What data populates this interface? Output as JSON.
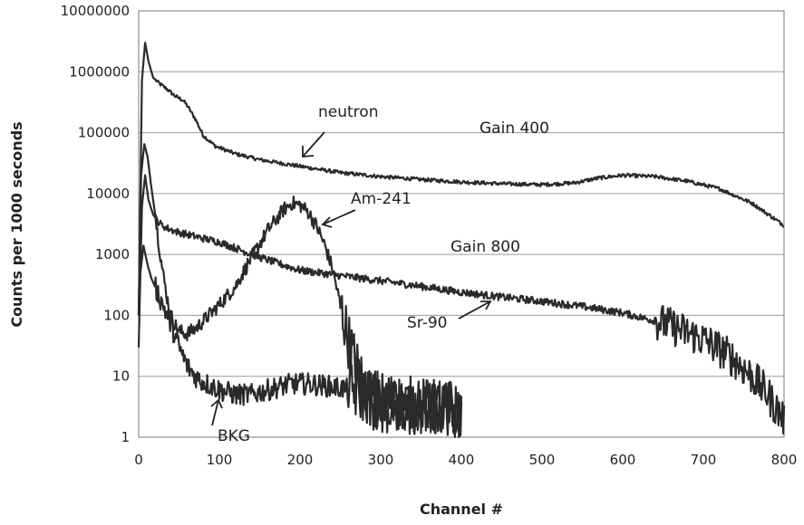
{
  "chart_data": {
    "type": "line",
    "xlabel": "Channel #",
    "ylabel": "Counts per 1000 seconds",
    "xlim": [
      0,
      800
    ],
    "ylim": [
      1,
      10000000
    ],
    "yscale": "log",
    "grid": true,
    "x_ticks": [
      0,
      100,
      200,
      300,
      400,
      500,
      600,
      700,
      800
    ],
    "y_ticks": [
      "1",
      "10",
      "100",
      "1000",
      "10000",
      "100000",
      "1000000",
      "10000000"
    ],
    "y_tick_values": [
      1,
      10,
      100,
      1000,
      10000,
      100000,
      1000000,
      10000000
    ],
    "series": [
      {
        "key": "neutron",
        "x": [
          0,
          4,
          8,
          12,
          18,
          25,
          35,
          45,
          55,
          60,
          70,
          80,
          95,
          120,
          150,
          200,
          250,
          300,
          350,
          400,
          450,
          500,
          540,
          570,
          600,
          640,
          680,
          720,
          760,
          800
        ],
        "y": [
          100,
          700000,
          3000000,
          1500000,
          800000,
          650000,
          520000,
          400000,
          340000,
          280000,
          170000,
          90000,
          60000,
          45000,
          36000,
          28000,
          22000,
          19000,
          17000,
          15500,
          14500,
          14000,
          15000,
          18000,
          20000,
          19000,
          16000,
          12000,
          7000,
          3000
        ],
        "noise": 0.03
      },
      {
        "key": "am241",
        "x": [
          0,
          3,
          7,
          11,
          15,
          20,
          25,
          30,
          35,
          40,
          45,
          50,
          60,
          70,
          80,
          100,
          120,
          140,
          160,
          180,
          190,
          200,
          210,
          220,
          230,
          240,
          250,
          260,
          270,
          280,
          290,
          300,
          320,
          340,
          360,
          380,
          400
        ],
        "y": [
          100,
          20000,
          65000,
          40000,
          15000,
          5000,
          1500,
          500,
          200,
          100,
          70,
          55,
          50,
          60,
          80,
          150,
          300,
          900,
          2500,
          5500,
          7000,
          6500,
          5000,
          3000,
          1500,
          600,
          150,
          40,
          15,
          7,
          4,
          3,
          3,
          3,
          3,
          3,
          3
        ],
        "noise": 0.12,
        "noise_from": 250,
        "noise_boost": 0.35
      },
      {
        "key": "sr90",
        "x": [
          0,
          4,
          8,
          12,
          18,
          25,
          35,
          50,
          75,
          100,
          125,
          150,
          175,
          200,
          250,
          300,
          350,
          400,
          450,
          500,
          550,
          600,
          650,
          700,
          720,
          740,
          760,
          780,
          790,
          800
        ],
        "y": [
          30,
          6000,
          20000,
          8000,
          4500,
          3300,
          2700,
          2300,
          1900,
          1600,
          1200,
          900,
          700,
          550,
          450,
          370,
          300,
          240,
          200,
          170,
          140,
          110,
          75,
          40,
          28,
          18,
          10,
          5,
          3,
          2
        ],
        "noise": 0.06,
        "noise_from": 640,
        "noise_boost": 0.25
      },
      {
        "key": "bkg",
        "x": [
          0,
          2,
          6,
          9,
          12,
          16,
          20,
          30,
          40,
          50,
          60,
          70,
          80,
          90,
          100,
          120,
          140,
          150,
          170,
          190,
          210,
          230,
          250,
          270,
          290,
          310,
          330,
          350,
          370,
          400
        ],
        "y": [
          100,
          500,
          1400,
          900,
          600,
          400,
          300,
          150,
          70,
          30,
          15,
          10,
          8,
          7,
          6,
          5,
          5,
          5.5,
          6.5,
          7.5,
          7.5,
          7,
          6.5,
          5.5,
          4.5,
          4,
          3.5,
          3.2,
          3,
          2.5
        ],
        "noise": 0.18,
        "noise_from": 260,
        "noise_boost": 0.3
      }
    ],
    "annotations": [
      {
        "key": "neutron",
        "text": "neutron"
      },
      {
        "key": "gain400",
        "text": "Gain 400"
      },
      {
        "key": "am241",
        "text": "Am-241"
      },
      {
        "key": "gain800",
        "text": "Gain 800"
      },
      {
        "key": "sr90",
        "text": "Sr-90"
      },
      {
        "key": "bkg",
        "text": "BKG"
      }
    ]
  }
}
